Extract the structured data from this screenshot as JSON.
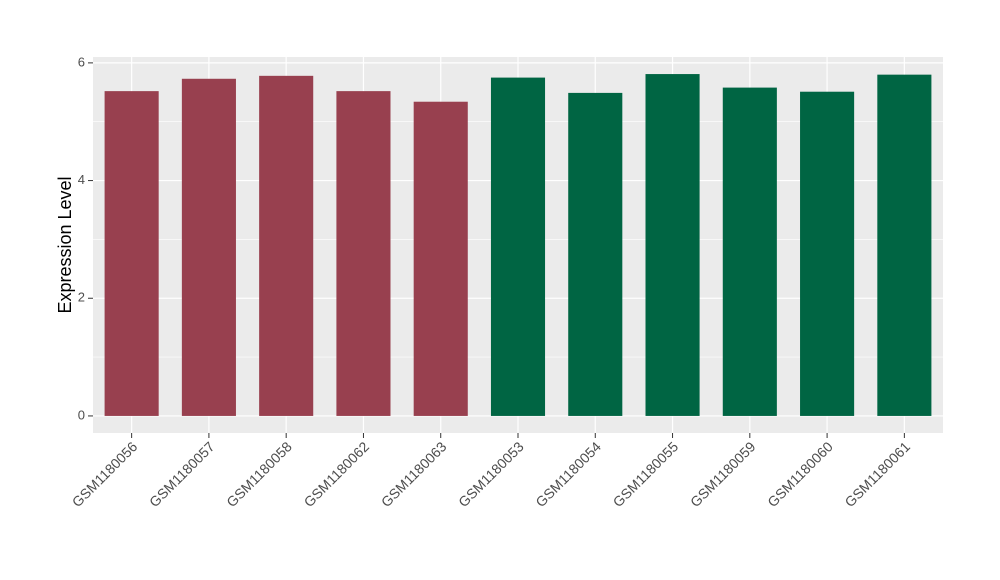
{
  "chart_data": {
    "type": "bar",
    "y_label": "Expression Level",
    "categories": [
      "GSM1180056",
      "GSM1180057",
      "GSM1180058",
      "GSM1180062",
      "GSM1180063",
      "GSM1180053",
      "GSM1180054",
      "GSM1180055",
      "GSM1180059",
      "GSM1180060",
      "GSM1180061"
    ],
    "values": [
      5.52,
      5.73,
      5.78,
      5.52,
      5.34,
      5.75,
      5.49,
      5.81,
      5.58,
      5.51,
      5.8
    ],
    "colors": [
      "#98404f",
      "#98404f",
      "#98404f",
      "#98404f",
      "#98404f",
      "#006543",
      "#006543",
      "#006543",
      "#006543",
      "#006543",
      "#006543"
    ],
    "ylim": [
      -0.29,
      6.1
    ],
    "yticks": [
      0,
      2,
      4,
      6
    ],
    "grid": true,
    "minor_grid": true
  }
}
